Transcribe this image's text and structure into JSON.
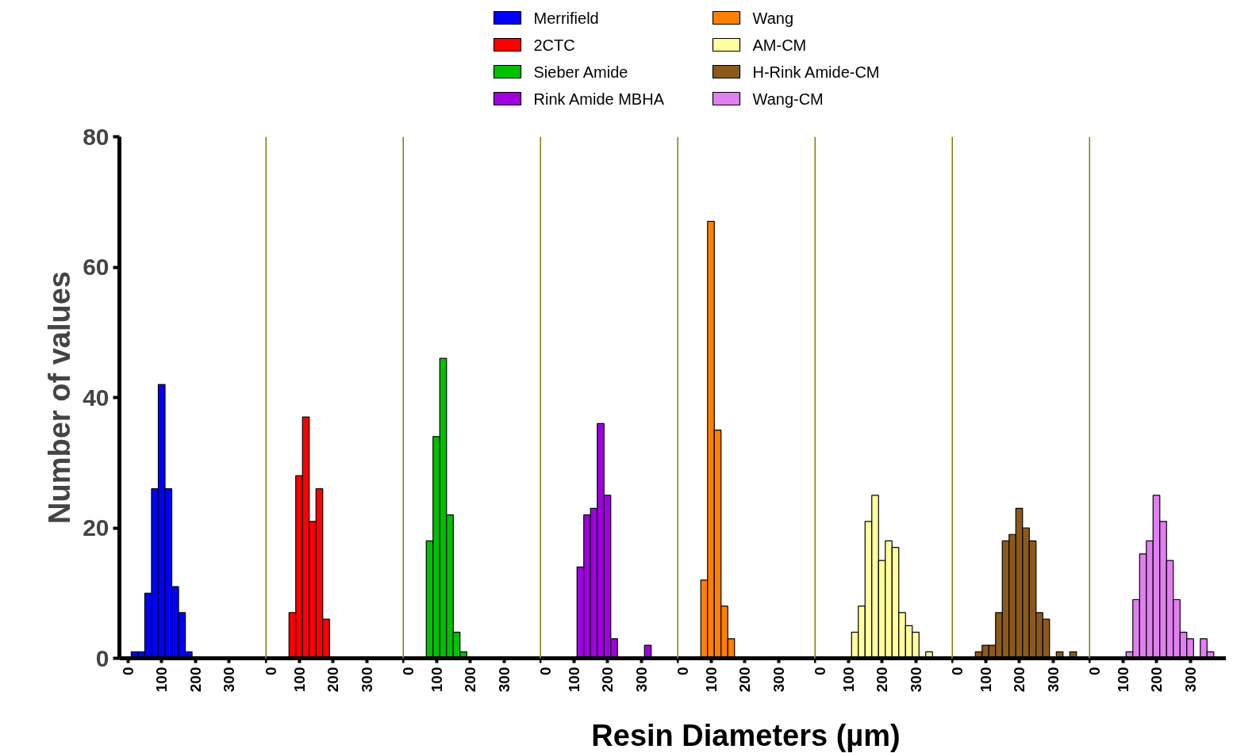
{
  "chart_data": [
    {
      "type": "histogram",
      "ylabel": "Number of values",
      "legend": "top",
      "xlim": [
        -25,
        407
      ],
      "xticks": [
        0,
        100,
        200,
        300
      ],
      "ylim": [
        0,
        80
      ],
      "yticks": [
        0,
        20,
        40,
        60,
        80
      ],
      "bins": [
        10,
        30,
        50,
        70,
        90,
        110,
        130,
        150,
        170,
        190
      ],
      "series": [
        {
          "name": "Merrifield",
          "color": "#0000ff",
          "values": [
            1,
            1,
            10,
            26,
            42,
            26,
            11,
            7,
            1
          ]
        }
      ]
    },
    {
      "type": "histogram",
      "legend": "top",
      "tick_labels": "x",
      "xlim": [
        0,
        407
      ],
      "xticks": [
        0,
        100,
        200,
        300
      ],
      "ylim": [
        0,
        80
      ],
      "bins": [
        70,
        90,
        110,
        130,
        150,
        170,
        190
      ],
      "series": [
        {
          "name": "2CTC",
          "color": "#ff0000",
          "values": [
            7,
            28,
            37,
            21,
            26,
            6
          ]
        }
      ]
    },
    {
      "type": "histogram",
      "legend": "top",
      "tick_labels": "x",
      "xlim": [
        0,
        407
      ],
      "xticks": [
        0,
        100,
        200,
        300
      ],
      "ylim": [
        0,
        80
      ],
      "bins": [
        70,
        90,
        110,
        130,
        150,
        170,
        190
      ],
      "series": [
        {
          "name": "Sieber Amide",
          "color": "#00c000",
          "values": [
            18,
            34,
            46,
            22,
            4,
            1
          ]
        }
      ]
    },
    {
      "type": "histogram",
      "legend": "top",
      "tick_labels": "x",
      "xlim": [
        0,
        407
      ],
      "xticks": [
        0,
        100,
        200,
        300
      ],
      "ylim": [
        0,
        80
      ],
      "bins": [
        110,
        130,
        150,
        170,
        190,
        210,
        230,
        250,
        270,
        290,
        310,
        330
      ],
      "series": [
        {
          "name": "Rink Amide MBHA",
          "color": "#a000e0",
          "values": [
            14,
            22,
            23,
            36,
            25,
            3,
            0,
            0,
            0,
            0,
            2
          ]
        }
      ]
    },
    {
      "type": "histogram",
      "xlabel": "Resin Diameters (µm)",
      "legend": "top",
      "tick_labels": "x",
      "xlim": [
        0,
        407
      ],
      "xticks": [
        0,
        100,
        200,
        300
      ],
      "ylim": [
        0,
        80
      ],
      "bins": [
        70,
        90,
        110,
        130,
        150,
        170
      ],
      "series": [
        {
          "name": "Wang",
          "color": "#ff8000",
          "values": [
            12,
            67,
            35,
            8,
            3
          ]
        }
      ]
    },
    {
      "type": "histogram",
      "legend": "top",
      "tick_labels": "x",
      "xlim": [
        0,
        407
      ],
      "xticks": [
        0,
        100,
        200,
        300
      ],
      "ylim": [
        0,
        80
      ],
      "bins": [
        110,
        130,
        150,
        170,
        190,
        210,
        230,
        250,
        270,
        290,
        310,
        330,
        350
      ],
      "series": [
        {
          "name": "AM-CM",
          "color": "#ffffa0",
          "values": [
            4,
            8,
            21,
            25,
            15,
            18,
            17,
            7,
            5,
            4,
            0,
            1
          ]
        }
      ]
    },
    {
      "type": "histogram",
      "legend": "top",
      "tick_labels": "x",
      "xlim": [
        0,
        407
      ],
      "xticks": [
        0,
        100,
        200,
        300
      ],
      "ylim": [
        0,
        80
      ],
      "bins": [
        70,
        90,
        110,
        130,
        150,
        170,
        190,
        210,
        230,
        250,
        270,
        290,
        310,
        330,
        350,
        370
      ],
      "series": [
        {
          "name": "H-Rink Amide-CM",
          "color": "#8b5a1a",
          "values": [
            1,
            2,
            2,
            7,
            18,
            19,
            23,
            20,
            18,
            7,
            6,
            0,
            1,
            0,
            1
          ]
        }
      ]
    },
    {
      "type": "histogram",
      "legend": "top",
      "tick_labels": "x",
      "xlim": [
        0,
        407
      ],
      "xticks": [
        0,
        100,
        200,
        300
      ],
      "ylim": [
        0,
        80
      ],
      "bins": [
        110,
        130,
        150,
        170,
        190,
        210,
        230,
        250,
        270,
        290,
        310,
        330,
        350,
        370
      ],
      "series": [
        {
          "name": "Wang-CM",
          "color": "#e080f0",
          "values": [
            1,
            9,
            16,
            18,
            25,
            21,
            15,
            9,
            4,
            3,
            0,
            3,
            1
          ]
        }
      ]
    }
  ]
}
